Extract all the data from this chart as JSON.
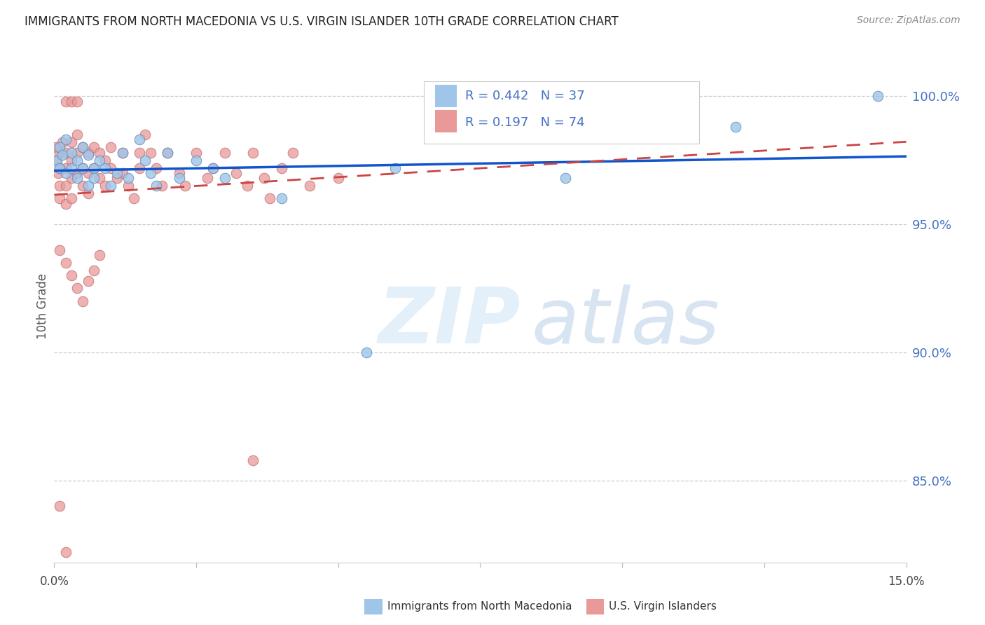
{
  "title": "IMMIGRANTS FROM NORTH MACEDONIA VS U.S. VIRGIN ISLANDER 10TH GRADE CORRELATION CHART",
  "source": "Source: ZipAtlas.com",
  "ylabel": "10th Grade",
  "yaxis_labels": [
    "100.0%",
    "95.0%",
    "90.0%",
    "85.0%"
  ],
  "yaxis_values": [
    1.0,
    0.95,
    0.9,
    0.85
  ],
  "xlim": [
    0.0,
    0.15
  ],
  "ylim": [
    0.818,
    1.018
  ],
  "legend_r_blue": "0.442",
  "legend_n_blue": "37",
  "legend_r_pink": "0.197",
  "legend_n_pink": "74",
  "legend_label_blue": "Immigrants from North Macedonia",
  "legend_label_pink": "U.S. Virgin Islanders",
  "blue_color": "#9fc5e8",
  "pink_color": "#ea9999",
  "blue_line_color": "#1155cc",
  "pink_line_color": "#cc4444",
  "accent_color": "#4472c4",
  "blue_scatter_x": [
    0.0005,
    0.001,
    0.001,
    0.0015,
    0.002,
    0.002,
    0.003,
    0.003,
    0.004,
    0.004,
    0.005,
    0.005,
    0.006,
    0.006,
    0.007,
    0.007,
    0.008,
    0.009,
    0.01,
    0.011,
    0.012,
    0.013,
    0.015,
    0.016,
    0.017,
    0.018,
    0.02,
    0.022,
    0.025,
    0.028,
    0.03,
    0.04,
    0.055,
    0.06,
    0.09,
    0.12,
    0.145
  ],
  "blue_scatter_y": [
    0.975,
    0.98,
    0.972,
    0.977,
    0.97,
    0.983,
    0.972,
    0.978,
    0.968,
    0.975,
    0.972,
    0.98,
    0.965,
    0.977,
    0.972,
    0.968,
    0.975,
    0.972,
    0.965,
    0.97,
    0.978,
    0.968,
    0.983,
    0.975,
    0.97,
    0.965,
    0.978,
    0.968,
    0.975,
    0.972,
    0.968,
    0.96,
    0.9,
    0.972,
    0.968,
    0.988,
    1.0
  ],
  "pink_scatter_x": [
    0.0003,
    0.0005,
    0.0007,
    0.001,
    0.001,
    0.001,
    0.001,
    0.0015,
    0.002,
    0.002,
    0.002,
    0.002,
    0.003,
    0.003,
    0.003,
    0.003,
    0.004,
    0.004,
    0.004,
    0.005,
    0.005,
    0.005,
    0.006,
    0.006,
    0.006,
    0.007,
    0.007,
    0.008,
    0.008,
    0.009,
    0.009,
    0.01,
    0.01,
    0.011,
    0.012,
    0.012,
    0.013,
    0.014,
    0.015,
    0.015,
    0.016,
    0.017,
    0.018,
    0.019,
    0.02,
    0.022,
    0.023,
    0.025,
    0.027,
    0.028,
    0.03,
    0.032,
    0.034,
    0.035,
    0.037,
    0.038,
    0.04,
    0.042,
    0.045,
    0.05,
    0.001,
    0.002,
    0.003,
    0.004,
    0.005,
    0.006,
    0.007,
    0.008,
    0.002,
    0.003,
    0.004,
    0.035,
    0.001,
    0.002
  ],
  "pink_scatter_y": [
    0.98,
    0.975,
    0.97,
    0.978,
    0.972,
    0.965,
    0.96,
    0.982,
    0.978,
    0.972,
    0.965,
    0.958,
    0.982,
    0.975,
    0.968,
    0.96,
    0.985,
    0.978,
    0.97,
    0.98,
    0.972,
    0.965,
    0.978,
    0.97,
    0.962,
    0.98,
    0.972,
    0.978,
    0.968,
    0.975,
    0.965,
    0.98,
    0.972,
    0.968,
    0.978,
    0.97,
    0.965,
    0.96,
    0.978,
    0.972,
    0.985,
    0.978,
    0.972,
    0.965,
    0.978,
    0.97,
    0.965,
    0.978,
    0.968,
    0.972,
    0.978,
    0.97,
    0.965,
    0.978,
    0.968,
    0.96,
    0.972,
    0.978,
    0.965,
    0.968,
    0.94,
    0.935,
    0.93,
    0.925,
    0.92,
    0.928,
    0.932,
    0.938,
    0.998,
    0.998,
    0.998,
    0.858,
    0.84,
    0.822
  ]
}
